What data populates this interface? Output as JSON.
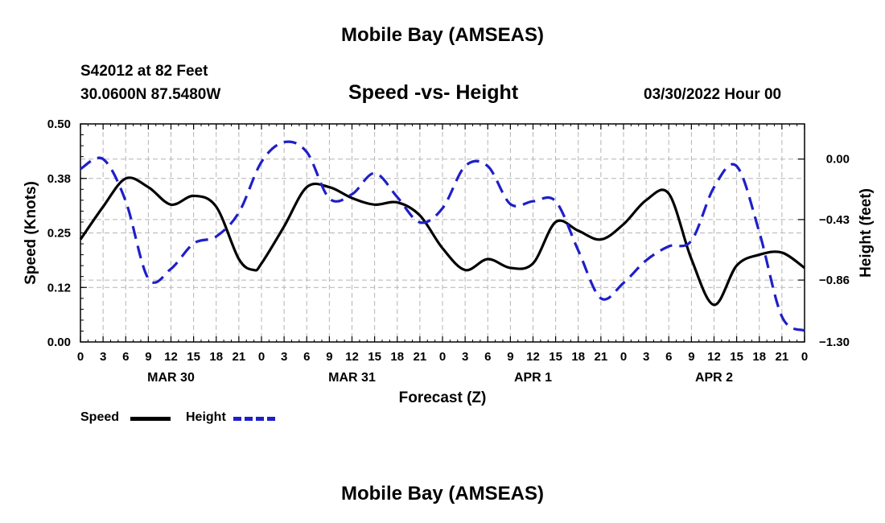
{
  "header": {
    "title": "Mobile Bay (AMSEAS)",
    "station": "S42012 at 82 Feet",
    "coords": "30.0600N  87.5480W",
    "subtitle": "Speed -vs- Height",
    "datetime": "03/30/2022 Hour 00"
  },
  "footer": {
    "title": "Mobile Bay (AMSEAS)"
  },
  "legend": {
    "speed_label": "Speed",
    "height_label": "Height"
  },
  "colors": {
    "speed": "#000000",
    "height": "#1f1fc8",
    "grid": "#b4b4b4"
  },
  "chart_data": {
    "type": "line",
    "title": "Speed -vs- Height",
    "xlabel": "Forecast (Z)",
    "ylabel": "Speed (Knots)",
    "y2label": "Height (feet)",
    "xlim": [
      0,
      96
    ],
    "ylim": [
      0,
      0.5
    ],
    "y2lim": [
      -1.3,
      0.25
    ],
    "grid": true,
    "legend_position": "bottom-left",
    "x_ticks": [
      0,
      3,
      6,
      9,
      12,
      15,
      18,
      21,
      24,
      27,
      30,
      33,
      36,
      39,
      42,
      45,
      48,
      51,
      54,
      57,
      60,
      63,
      66,
      69,
      72,
      75,
      78,
      81,
      84,
      87,
      90,
      93,
      96
    ],
    "x_tick_labels": [
      "0",
      "3",
      "6",
      "9",
      "12",
      "15",
      "18",
      "21",
      "0",
      "3",
      "6",
      "9",
      "12",
      "15",
      "18",
      "21",
      "0",
      "3",
      "6",
      "9",
      "12",
      "15",
      "18",
      "21",
      "0",
      "3",
      "6",
      "9",
      "12",
      "15",
      "18",
      "21",
      "0"
    ],
    "day_labels": [
      {
        "x": 12,
        "label": "MAR 30"
      },
      {
        "x": 36,
        "label": "MAR 31"
      },
      {
        "x": 60,
        "label": "APR 1"
      },
      {
        "x": 84,
        "label": "APR 2"
      }
    ],
    "y_ticks": [
      0.0,
      0.125,
      0.25,
      0.375,
      0.5
    ],
    "y_tick_labels": [
      "0.00",
      "0.12",
      "0.25",
      "0.38",
      "0.50"
    ],
    "y2_ticks": [
      0.0,
      -0.43,
      -0.86,
      -1.3
    ],
    "y2_tick_labels": [
      "0.00",
      "−0.43",
      "−0.86",
      "−1.30"
    ],
    "series": [
      {
        "name": "Speed",
        "axis": "left",
        "style": "solid",
        "x": [
          0,
          3,
          6,
          9,
          12,
          15,
          18,
          21,
          23,
          24,
          27,
          30,
          33,
          36,
          39,
          42,
          45,
          48,
          51,
          54,
          57,
          60,
          63,
          66,
          69,
          72,
          75,
          78,
          81,
          84,
          87,
          90,
          93,
          96
        ],
        "values": [
          0.235,
          0.31,
          0.375,
          0.355,
          0.315,
          0.335,
          0.31,
          0.19,
          0.165,
          0.18,
          0.265,
          0.355,
          0.355,
          0.33,
          0.315,
          0.32,
          0.29,
          0.215,
          0.165,
          0.19,
          0.17,
          0.18,
          0.275,
          0.255,
          0.235,
          0.27,
          0.325,
          0.34,
          0.19,
          0.085,
          0.175,
          0.2,
          0.205,
          0.17
        ]
      },
      {
        "name": "Height",
        "axis": "right",
        "style": "dashed",
        "x": [
          0,
          3,
          6,
          9,
          12,
          15,
          18,
          21,
          24,
          27,
          30,
          33,
          36,
          39,
          42,
          45,
          48,
          51,
          54,
          57,
          60,
          63,
          66,
          69,
          72,
          75,
          78,
          81,
          84,
          87,
          90,
          93,
          96
        ],
        "values": [
          -0.07,
          0.0,
          -0.3,
          -0.85,
          -0.78,
          -0.6,
          -0.55,
          -0.38,
          -0.02,
          0.12,
          0.05,
          -0.28,
          -0.25,
          -0.1,
          -0.27,
          -0.45,
          -0.35,
          -0.05,
          -0.05,
          -0.32,
          -0.3,
          -0.3,
          -0.65,
          -0.99,
          -0.88,
          -0.72,
          -0.62,
          -0.58,
          -0.2,
          -0.05,
          -0.52,
          -1.12,
          -1.22
        ]
      }
    ]
  }
}
